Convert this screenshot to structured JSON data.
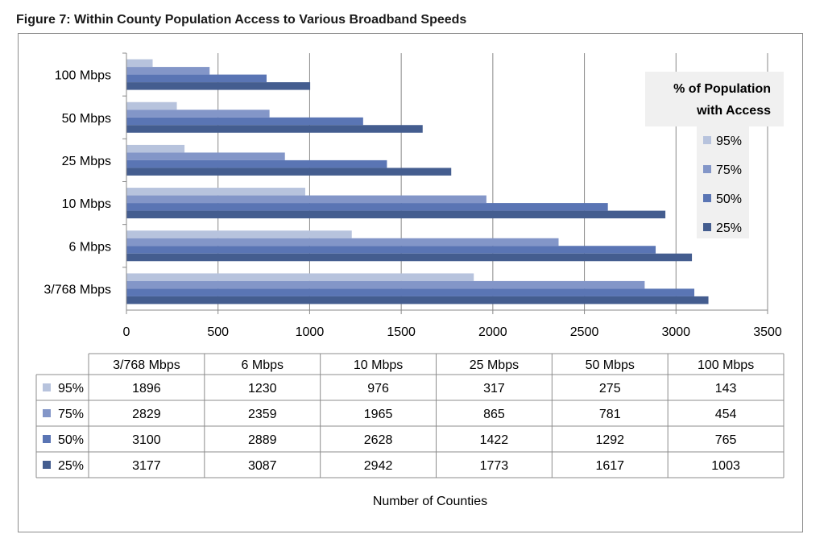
{
  "figure": {
    "title": "Figure 7: Within County Population Access to Various Broadband Speeds"
  },
  "chart_data": {
    "type": "bar",
    "orientation": "horizontal",
    "categories": [
      "3/768 Mbps",
      "6 Mbps",
      "10 Mbps",
      "25 Mbps",
      "50 Mbps",
      "100 Mbps"
    ],
    "series": [
      {
        "name": "95%",
        "color": "#b7c3dd",
        "values": [
          1896,
          1230,
          976,
          317,
          275,
          143
        ]
      },
      {
        "name": "75%",
        "color": "#8396c8",
        "values": [
          2829,
          2359,
          1965,
          865,
          781,
          454
        ]
      },
      {
        "name": "50%",
        "color": "#5a75b4",
        "values": [
          3100,
          2889,
          2628,
          1422,
          1292,
          765
        ]
      },
      {
        "name": "25%",
        "color": "#445d8f",
        "values": [
          3177,
          3087,
          2942,
          1773,
          1617,
          1003
        ]
      }
    ],
    "xlim": [
      0,
      3500
    ],
    "xticks": [
      "0",
      "500",
      "1000",
      "1500",
      "2000",
      "2500",
      "3000",
      "3500"
    ],
    "xlabel": "Number of Counties",
    "ylabel": "",
    "grid": "vertical",
    "legend": {
      "title_line1": "% of Population",
      "title_line2": "with Access",
      "placement": "right"
    },
    "data_table": true
  }
}
